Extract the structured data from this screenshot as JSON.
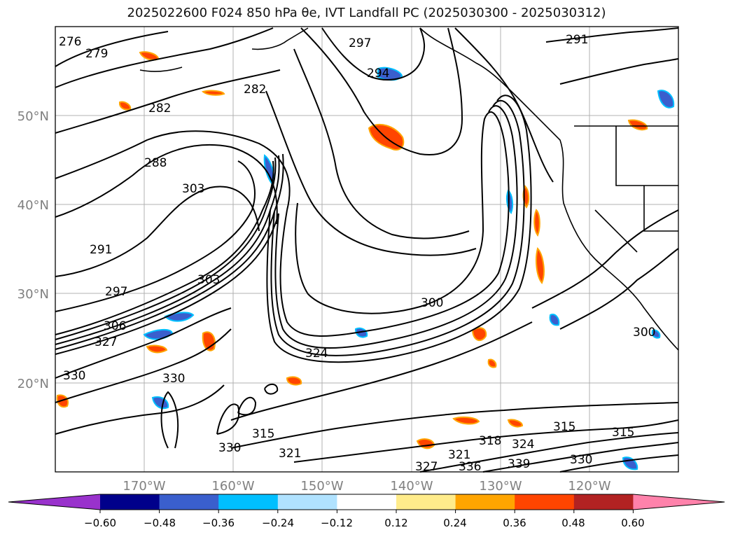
{
  "title": "2025022600 F024 850 hPa θe, IVT Landfall PC (2025030300 - 2025030312)",
  "lat_labels": [
    "50°N",
    "40°N",
    "30°N",
    "20°N"
  ],
  "lon_labels": [
    "170°W",
    "160°W",
    "150°W",
    "140°W",
    "130°W",
    "120°W"
  ],
  "contour_labels": [
    "276",
    "279",
    "282",
    "282",
    "288",
    "291",
    "297",
    "303",
    "303",
    "306",
    "327",
    "330",
    "330",
    "324",
    "297",
    "294",
    "300",
    "315",
    "315",
    "318",
    "327",
    "321",
    "336",
    "339",
    "330",
    "324",
    "315",
    "321",
    "330",
    "291",
    "300"
  ],
  "colorbar": {
    "ticks": [
      "−0.60",
      "−0.48",
      "−0.36",
      "−0.24",
      "−0.12",
      "0.12",
      "0.24",
      "0.36",
      "0.48",
      "0.60"
    ],
    "colors": [
      "#9932cc",
      "#00008b",
      "#3a5fcd",
      "#00bfff",
      "#b0e2ff",
      "#ffffff",
      "#ffec8b",
      "#ffa500",
      "#ff4500",
      "#b22222",
      "#ff82ab"
    ]
  }
}
